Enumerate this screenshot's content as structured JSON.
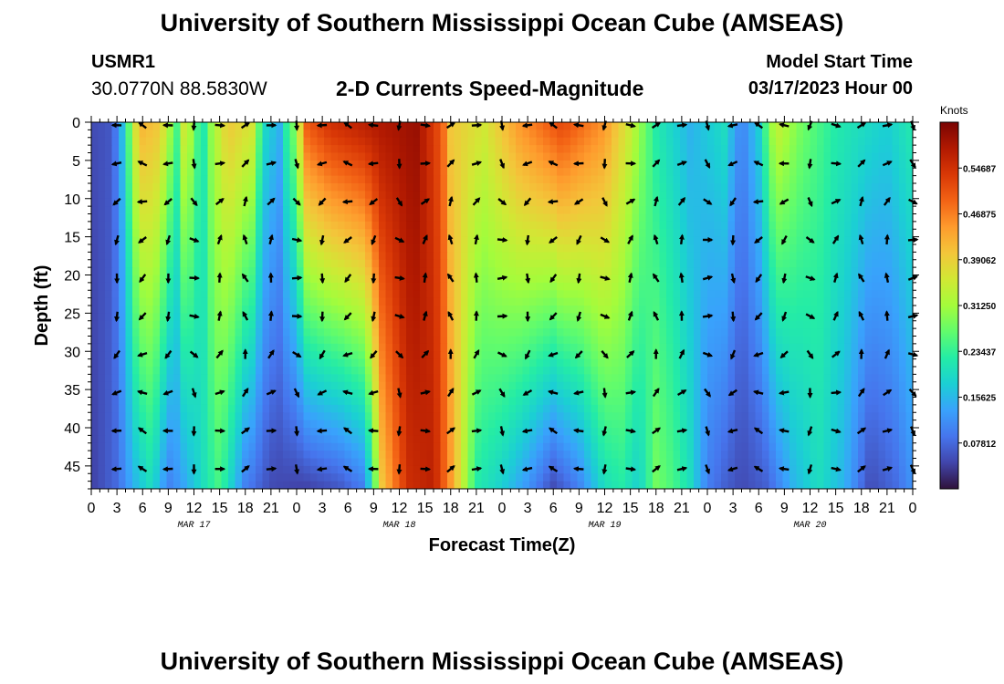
{
  "header": {
    "title": "University of Southern Mississippi Ocean Cube (AMSEAS)",
    "station": "USMR1",
    "coords": "30.0770N  88.5830W",
    "subtitle": "2-D Currents Speed-Magnitude",
    "model_start_label": "Model Start Time",
    "model_start_value": "03/17/2023 Hour 00"
  },
  "footer": {
    "title": "University of Southern Mississippi Ocean Cube (AMSEAS)"
  },
  "colors": {
    "ramp": [
      "#30123b",
      "#4145ab",
      "#4675ed",
      "#39a2fc",
      "#1bcfd4",
      "#24eca6",
      "#61fc6c",
      "#a4fc3b",
      "#d1e834",
      "#f3c63a",
      "#fe9b2d",
      "#f36315",
      "#d93806",
      "#b11901",
      "#7a0403"
    ]
  },
  "chart_data": {
    "type": "heatmap",
    "title": "2-D Currents Speed-Magnitude",
    "xlabel": "Forecast Time(Z)",
    "ylabel": "Depth (ft)",
    "xlim": [
      0,
      96
    ],
    "ylim": [
      0,
      48
    ],
    "x_ticks": [
      0,
      3,
      6,
      9,
      12,
      15,
      18,
      21,
      24,
      27,
      30,
      33,
      36,
      39,
      42,
      45,
      48,
      51,
      54,
      57,
      60,
      63,
      66,
      69,
      72,
      75,
      78,
      81,
      84,
      87,
      90,
      93,
      96
    ],
    "x_tick_labels": [
      "0",
      "3",
      "6",
      "9",
      "12",
      "15",
      "18",
      "21",
      "0",
      "3",
      "6",
      "9",
      "12",
      "15",
      "18",
      "21",
      "0",
      "3",
      "6",
      "9",
      "12",
      "15",
      "18",
      "21",
      "0",
      "3",
      "6",
      "9",
      "12",
      "15",
      "18",
      "21",
      "0"
    ],
    "date_labels": [
      {
        "label": "MAR 17",
        "hour": 12
      },
      {
        "label": "MAR 18",
        "hour": 36
      },
      {
        "label": "MAR 19",
        "hour": 60
      },
      {
        "label": "MAR 20",
        "hour": 84
      }
    ],
    "y_ticks": [
      0,
      5,
      10,
      15,
      20,
      25,
      30,
      35,
      40,
      45
    ],
    "y_tick_labels": [
      "0",
      "5",
      "10",
      "15",
      "20",
      "25",
      "30",
      "35",
      "40",
      "45"
    ],
    "colorbar": {
      "unit": "Knots",
      "min": 0.0,
      "max": 0.625,
      "ticks": [
        0.07812,
        0.15625,
        0.23437,
        0.3125,
        0.39062,
        0.46875,
        0.54687
      ],
      "tick_labels": [
        "0.07812",
        "0.15625",
        "0.23437",
        "0.31250",
        "0.39062",
        "0.46875",
        "0.54687"
      ]
    },
    "arrow_hours": [
      3,
      6,
      9,
      12,
      15,
      18,
      21,
      24,
      27,
      30,
      33,
      36,
      39,
      42,
      45,
      48,
      51,
      54,
      57,
      60,
      63,
      66,
      69,
      72,
      75,
      78,
      81,
      84,
      87,
      90,
      93,
      96
    ],
    "arrow_depths": [
      0,
      5,
      10,
      15,
      20,
      25,
      30,
      35,
      40,
      45
    ],
    "speed_profile_surface": [
      [
        0,
        0.05
      ],
      [
        2,
        0.06
      ],
      [
        3,
        0.1
      ],
      [
        4,
        0.2
      ],
      [
        5,
        0.36
      ],
      [
        6,
        0.42
      ],
      [
        8,
        0.4
      ],
      [
        10,
        0.25
      ],
      [
        11,
        0.38
      ],
      [
        12,
        0.28
      ],
      [
        13,
        0.2
      ],
      [
        14,
        0.3
      ],
      [
        16,
        0.4
      ],
      [
        19,
        0.36
      ],
      [
        20,
        0.2
      ],
      [
        22,
        0.15
      ],
      [
        23,
        0.25
      ],
      [
        24,
        0.3
      ],
      [
        25,
        0.5
      ],
      [
        28,
        0.55
      ],
      [
        33,
        0.58
      ],
      [
        38,
        0.6
      ],
      [
        41,
        0.5
      ],
      [
        42,
        0.4
      ],
      [
        46,
        0.36
      ],
      [
        50,
        0.45
      ],
      [
        55,
        0.52
      ],
      [
        60,
        0.45
      ],
      [
        63,
        0.35
      ],
      [
        66,
        0.22
      ],
      [
        70,
        0.15
      ],
      [
        74,
        0.2
      ],
      [
        76,
        0.1
      ],
      [
        78,
        0.18
      ],
      [
        80,
        0.35
      ],
      [
        83,
        0.28
      ],
      [
        87,
        0.22
      ],
      [
        93,
        0.18
      ],
      [
        96,
        0.22
      ]
    ],
    "speed_profile_bottom": [
      [
        0,
        0.04
      ],
      [
        3,
        0.08
      ],
      [
        5,
        0.15
      ],
      [
        7,
        0.2
      ],
      [
        9,
        0.1
      ],
      [
        11,
        0.14
      ],
      [
        13,
        0.2
      ],
      [
        15,
        0.25
      ],
      [
        18,
        0.1
      ],
      [
        21,
        0.05
      ],
      [
        25,
        0.04
      ],
      [
        29,
        0.06
      ],
      [
        32,
        0.1
      ],
      [
        34,
        0.4
      ],
      [
        37,
        0.55
      ],
      [
        40,
        0.57
      ],
      [
        42,
        0.45
      ],
      [
        45,
        0.22
      ],
      [
        48,
        0.18
      ],
      [
        51,
        0.12
      ],
      [
        54,
        0.05
      ],
      [
        57,
        0.1
      ],
      [
        60,
        0.2
      ],
      [
        62,
        0.22
      ],
      [
        64,
        0.18
      ],
      [
        66,
        0.28
      ],
      [
        68,
        0.25
      ],
      [
        70,
        0.2
      ],
      [
        72,
        0.1
      ],
      [
        74,
        0.07
      ],
      [
        76,
        0.05
      ],
      [
        79,
        0.07
      ],
      [
        82,
        0.15
      ],
      [
        85,
        0.2
      ],
      [
        88,
        0.15
      ],
      [
        91,
        0.05
      ],
      [
        94,
        0.08
      ],
      [
        96,
        0.12
      ]
    ]
  }
}
